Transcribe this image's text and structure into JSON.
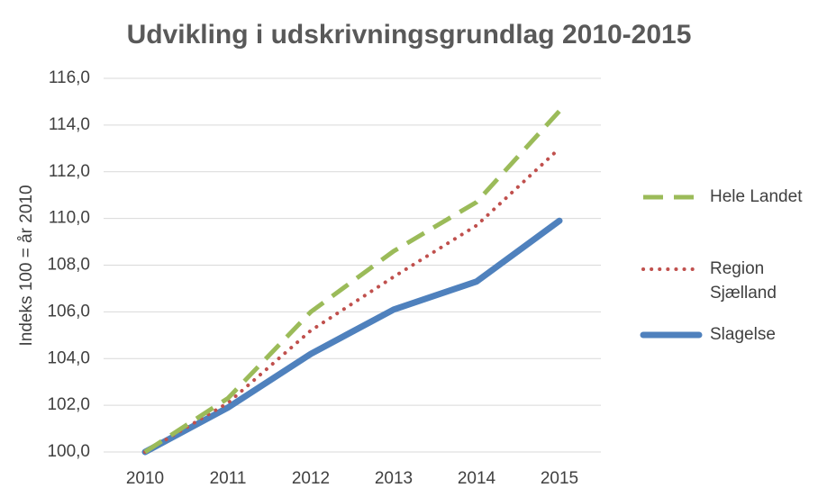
{
  "chart_data": {
    "type": "line",
    "title": "Udvikling i udskrivningsgrundlag 2010-2015",
    "y_label": "Indeks 100 = år 2010",
    "categories": [
      "2010",
      "2011",
      "2012",
      "2013",
      "2014",
      "2015"
    ],
    "series": [
      {
        "name": "Hele Landet",
        "color": "#9bbb59",
        "style": "dashed",
        "values": [
          100.0,
          102.3,
          106.0,
          108.6,
          110.7,
          114.6
        ]
      },
      {
        "name": "Region Sjælland",
        "color": "#c0504d",
        "style": "dotted",
        "values": [
          100.0,
          102.1,
          105.2,
          107.5,
          109.7,
          113.0
        ]
      },
      {
        "name": "Slagelse",
        "color": "#4f81bd",
        "style": "solid",
        "values": [
          100.0,
          101.9,
          104.2,
          106.1,
          107.3,
          109.9
        ]
      }
    ],
    "ylim": [
      100,
      116
    ],
    "yticks": [
      {
        "value": 100,
        "label": "100,0"
      },
      {
        "value": 102,
        "label": "102,0"
      },
      {
        "value": 104,
        "label": "104,0"
      },
      {
        "value": 106,
        "label": "106,0"
      },
      {
        "value": 108,
        "label": "108,0"
      },
      {
        "value": 110,
        "label": "110,0"
      },
      {
        "value": 112,
        "label": "112,0"
      },
      {
        "value": 114,
        "label": "114,0"
      },
      {
        "value": 116,
        "label": "116,0"
      }
    ],
    "grid": true,
    "legend": "right"
  }
}
